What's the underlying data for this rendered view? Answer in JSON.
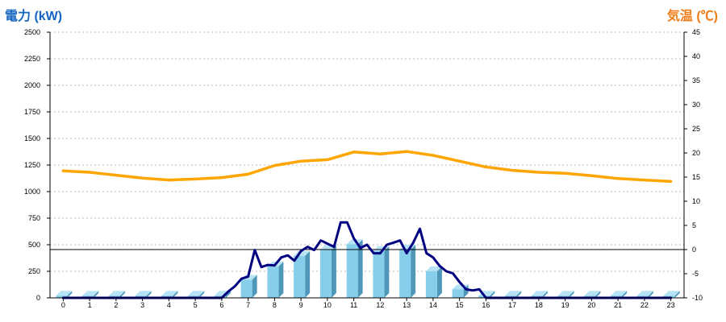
{
  "colors": {
    "power_title": "#1565c0",
    "temp_title": "#ef7d1a",
    "bars": "#87ceeb",
    "bars_side": "#4f97b8",
    "bars_top": "#b7e3f5",
    "power_line": "#000080",
    "temp_line": "#ffa500"
  },
  "chart_data": {
    "type": "bar",
    "y1label": "電力 (kW)",
    "y2label": "気温 (℃)",
    "categories": [
      "0",
      "1",
      "2",
      "3",
      "4",
      "5",
      "6",
      "7",
      "8",
      "9",
      "10",
      "11",
      "12",
      "13",
      "14",
      "15",
      "16",
      "17",
      "18",
      "19",
      "20",
      "21",
      "22",
      "23"
    ],
    "y1lim": [
      0,
      2500
    ],
    "y1ticks": [
      "0",
      "250",
      "500",
      "750",
      "1000",
      "1250",
      "1500",
      "1750",
      "2000",
      "2250",
      "2500"
    ],
    "y2lim": [
      -10,
      45
    ],
    "y2ticks": [
      "-10",
      "-5",
      "0",
      "5",
      "10",
      "15",
      "20",
      "25",
      "30",
      "35",
      "40",
      "45"
    ],
    "grid": true,
    "series": [
      {
        "kind": "bar",
        "axis": "y1",
        "values": [
          20,
          20,
          20,
          20,
          20,
          20,
          20,
          170,
          295,
          395,
          450,
          505,
          440,
          455,
          250,
          80,
          20,
          20,
          20,
          20,
          20,
          20,
          20,
          20
        ]
      },
      {
        "kind": "line",
        "axis": "y1",
        "x": [
          0,
          0.25,
          0.5,
          0.75,
          1,
          1.25,
          1.5,
          1.75,
          2,
          2.25,
          2.5,
          2.75,
          3,
          3.25,
          3.5,
          3.75,
          4,
          4.25,
          4.5,
          4.75,
          5,
          5.25,
          5.5,
          5.75,
          6,
          6.25,
          6.5,
          6.75,
          7,
          7.25,
          7.5,
          7.75,
          8,
          8.25,
          8.5,
          8.75,
          9,
          9.25,
          9.5,
          9.75,
          10,
          10.25,
          10.5,
          10.75,
          11,
          11.25,
          11.5,
          11.75,
          12,
          12.25,
          12.5,
          12.75,
          13,
          13.25,
          13.5,
          13.75,
          14,
          14.25,
          14.5,
          14.75,
          15,
          15.25,
          15.5,
          15.75,
          16,
          16.25,
          16.5,
          16.75,
          17,
          17.25,
          17.5,
          17.75,
          18,
          18.25,
          18.5,
          18.75,
          19,
          19.25,
          19.5,
          19.75,
          20,
          20.25,
          20.5,
          20.75,
          21,
          21.25,
          21.5,
          21.75,
          22,
          22.25,
          22.5,
          22.75,
          23
        ],
        "values": [
          0,
          0,
          0,
          0,
          0,
          0,
          0,
          0,
          0,
          0,
          0,
          0,
          0,
          0,
          0,
          0,
          0,
          0,
          0,
          0,
          0,
          0,
          0,
          0,
          0,
          60,
          110,
          180,
          200,
          450,
          290,
          310,
          305,
          380,
          400,
          350,
          440,
          480,
          450,
          540,
          510,
          480,
          710,
          710,
          560,
          470,
          500,
          420,
          420,
          500,
          520,
          540,
          420,
          520,
          650,
          420,
          380,
          300,
          250,
          230,
          150,
          80,
          70,
          80,
          0,
          0,
          0,
          0,
          0,
          0,
          0,
          0,
          0,
          0,
          0,
          0,
          0,
          0,
          0,
          0,
          0,
          0,
          0,
          0,
          0,
          0,
          0,
          0,
          0,
          0,
          0,
          0,
          0
        ]
      },
      {
        "kind": "line",
        "axis": "y2",
        "x": [
          0,
          1,
          2,
          3,
          4,
          5,
          6,
          7,
          8,
          9,
          10,
          11,
          12,
          13,
          14,
          15,
          16,
          17,
          18,
          19,
          20,
          21,
          22,
          23
        ],
        "values": [
          16.3,
          16.0,
          15.4,
          14.8,
          14.4,
          14.6,
          14.9,
          15.6,
          17.4,
          18.3,
          18.6,
          20.2,
          19.8,
          20.3,
          19.5,
          18.3,
          17.1,
          16.4,
          16.0,
          15.8,
          15.3,
          14.7,
          14.4,
          14.1
        ]
      }
    ]
  }
}
